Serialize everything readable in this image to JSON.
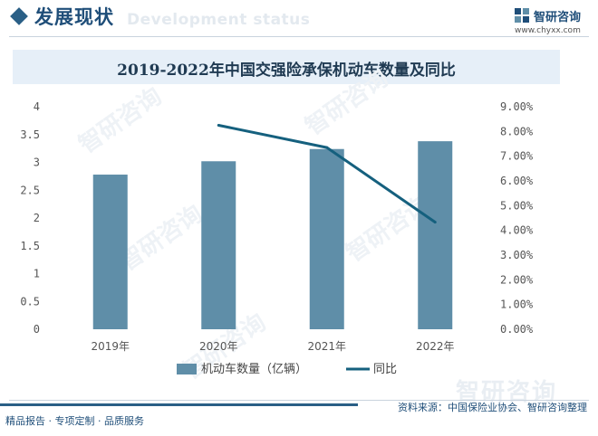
{
  "header": {
    "section_title": "发展现状",
    "section_subtitle": "Development status",
    "logo_name": "智研咨询",
    "logo_url": "www.chyxx.com"
  },
  "chart_data": {
    "type": "bar+line",
    "title": "2019-2022年中国交强险承保机动车数量及同比",
    "categories": [
      "2019年",
      "2020年",
      "2021年",
      "2022年"
    ],
    "series": [
      {
        "name": "机动车数量（亿辆）",
        "type": "bar",
        "axis": "left",
        "color": "#5f8ea8",
        "values": [
          2.78,
          3.02,
          3.24,
          3.38
        ]
      },
      {
        "name": "同比",
        "type": "line",
        "axis": "right",
        "color": "#15607e",
        "x": [
          "2020年",
          "2021年",
          "2022年"
        ],
        "values": [
          8.25,
          7.35,
          4.33
        ]
      }
    ],
    "left_axis": {
      "ylim": [
        0,
        4
      ],
      "ticks": [
        0,
        0.5,
        1,
        1.5,
        2,
        2.5,
        3,
        3.5,
        4
      ],
      "tick_labels": [
        "0",
        "0.5",
        "1",
        "1.5",
        "2",
        "2.5",
        "3",
        "3.5",
        "4"
      ]
    },
    "right_axis": {
      "ylim": [
        0,
        9
      ],
      "ticks": [
        0,
        1,
        2,
        3,
        4,
        5,
        6,
        7,
        8,
        9
      ],
      "tick_labels": [
        "0.00%",
        "1.00%",
        "2.00%",
        "3.00%",
        "4.00%",
        "5.00%",
        "6.00%",
        "7.00%",
        "8.00%",
        "9.00%"
      ],
      "unit": "%"
    },
    "legend": {
      "position": "bottom"
    },
    "grid": false
  },
  "watermark": {
    "text": "智研咨询"
  },
  "footer": {
    "source": "资料来源：中国保险业协会、智研咨询整理",
    "tagline": "精品报告 · 专项定制 · 品质服务"
  }
}
